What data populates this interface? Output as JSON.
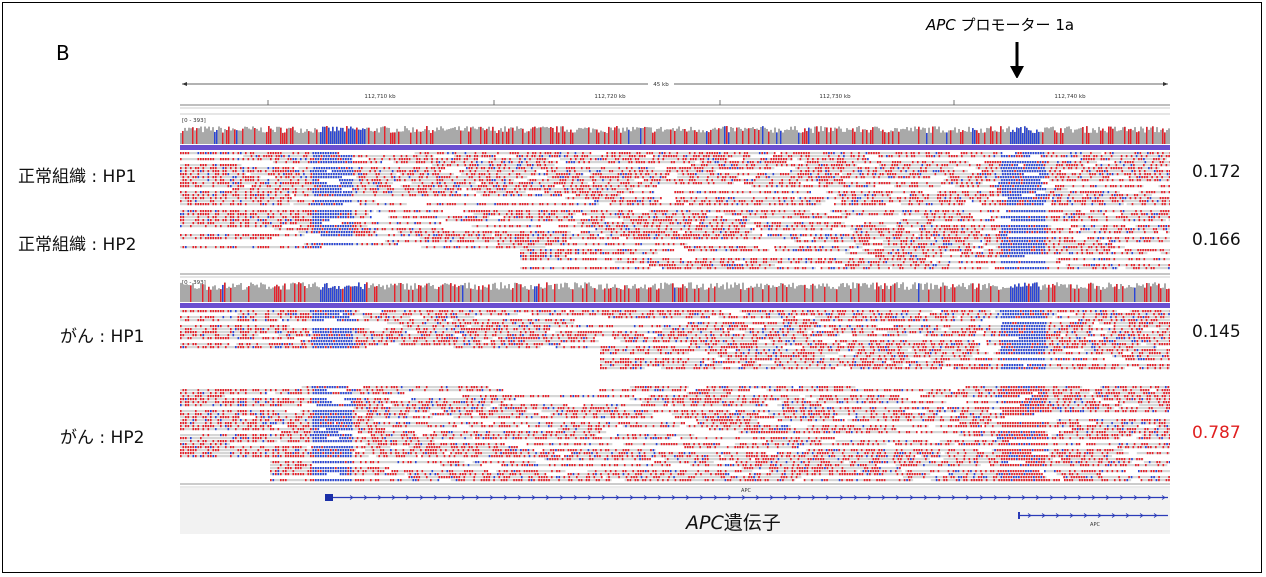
{
  "figure": {
    "panel_letter": "B",
    "promoter_gene": "APC",
    "promoter_suffix": " プロモーター 1a",
    "gene_name": "APC",
    "gene_suffix": "遺伝子"
  },
  "igv": {
    "region_size": "45 kb",
    "ticks": [
      "112,710 kb",
      "112,720 kb",
      "112,730 kb",
      "112,740 kb"
    ],
    "coverage_range_1": "[0 - 393]",
    "coverage_range_2": "[0 - 393]",
    "track_annotation": "APC",
    "track_annotation_2": "APC",
    "colors": {
      "methylated": "#e8202a",
      "unmethylated": "#2a45d8",
      "read_bg": "#d6d6d6",
      "coverage": "#a9a9a9",
      "separator": "#6a5acd"
    }
  },
  "rows": [
    {
      "label": "正常組織 : HP1",
      "value": "0.172",
      "highlight": false
    },
    {
      "label": "正常組織 : HP2",
      "value": "0.166",
      "highlight": false
    },
    {
      "label": "がん : HP1",
      "value": "0.145",
      "highlight": false
    },
    {
      "label": "がん : HP2",
      "value": "0.787",
      "highlight": true
    }
  ]
}
